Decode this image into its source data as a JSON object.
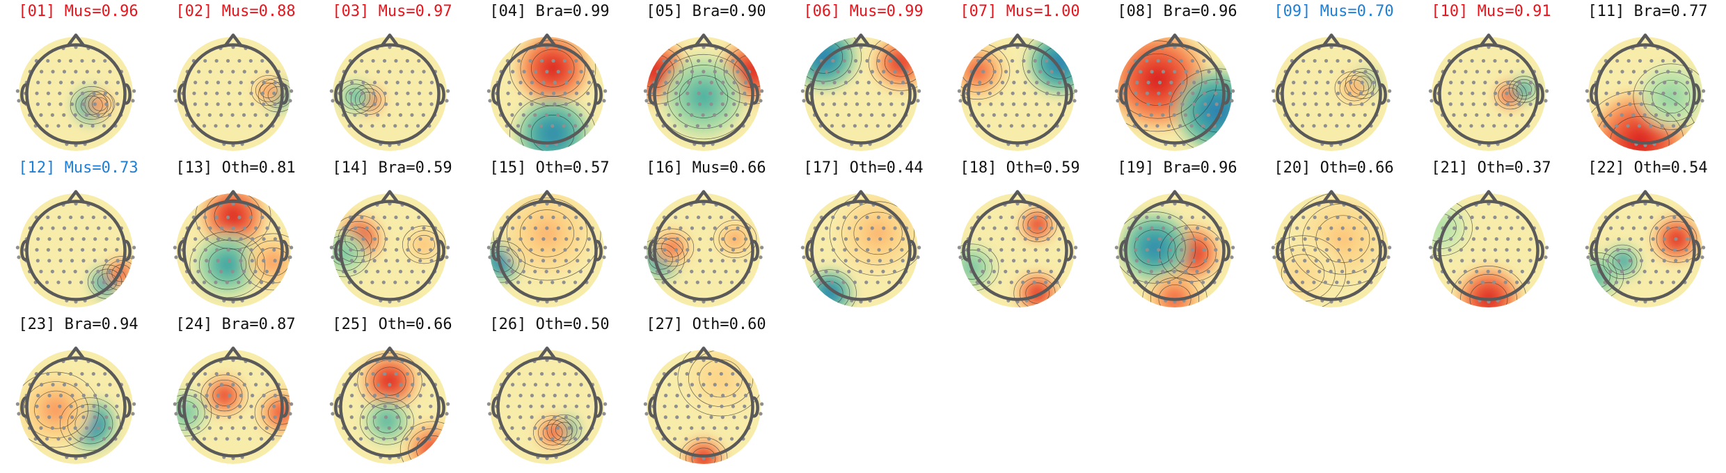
{
  "colors": {
    "muscle": "#e8141c",
    "muscle_low": "#1e7fd6",
    "default": "#111111"
  },
  "maps": [
    {
      "id": "[01]",
      "text": "Mus=0.96",
      "color": "#e8141c",
      "blobs": [
        {
          "dx": 0.28,
          "dy": 0.2,
          "r": 0.2,
          "v": -1.0
        },
        {
          "dx": 0.42,
          "dy": 0.18,
          "r": 0.14,
          "v": 0.7
        }
      ]
    },
    {
      "id": "[02]",
      "text": "Mus=0.88",
      "color": "#e8141c",
      "blobs": [
        {
          "dx": 0.78,
          "dy": 0.02,
          "r": 0.18,
          "v": -0.9
        },
        {
          "dx": 0.62,
          "dy": -0.06,
          "r": 0.16,
          "v": 0.6
        }
      ]
    },
    {
      "id": "[03]",
      "text": "Mus=0.97",
      "color": "#e8141c",
      "blobs": [
        {
          "dx": -0.38,
          "dy": 0.1,
          "r": 0.16,
          "v": 1.0
        },
        {
          "dx": -0.6,
          "dy": 0.05,
          "r": 0.18,
          "v": -0.6
        }
      ]
    },
    {
      "id": "[04]",
      "text": "Bra=0.99",
      "color": "#111111",
      "blobs": [
        {
          "dx": 0.1,
          "dy": -0.45,
          "r": 0.4,
          "v": 1.0
        },
        {
          "dx": 0.1,
          "dy": 0.7,
          "r": 0.4,
          "v": -0.9
        }
      ]
    },
    {
      "id": "[05]",
      "text": "Bra=0.90",
      "color": "#111111",
      "blobs": [
        {
          "dx": -0.85,
          "dy": -0.4,
          "r": 0.35,
          "v": 1.0
        },
        {
          "dx": 0.85,
          "dy": -0.4,
          "r": 0.35,
          "v": 1.0
        },
        {
          "dx": 0.0,
          "dy": 0.05,
          "r": 0.45,
          "v": -0.6
        }
      ]
    },
    {
      "id": "[06]",
      "text": "Mus=0.99",
      "color": "#e8141c",
      "blobs": [
        {
          "dx": -0.65,
          "dy": -0.65,
          "r": 0.35,
          "v": -1.0
        },
        {
          "dx": 0.7,
          "dy": -0.55,
          "r": 0.3,
          "v": 0.9
        }
      ]
    },
    {
      "id": "[07]",
      "text": "Mus=1.00",
      "color": "#e8141c",
      "blobs": [
        {
          "dx": 0.75,
          "dy": -0.55,
          "r": 0.35,
          "v": -1.0
        },
        {
          "dx": -0.7,
          "dy": -0.4,
          "r": 0.3,
          "v": 0.7
        }
      ]
    },
    {
      "id": "[08]",
      "text": "Bra=0.96",
      "color": "#111111",
      "blobs": [
        {
          "dx": -0.3,
          "dy": -0.25,
          "r": 0.55,
          "v": 1.0
        },
        {
          "dx": 0.75,
          "dy": 0.3,
          "r": 0.45,
          "v": -1.0
        }
      ]
    },
    {
      "id": "[09]",
      "text": "Mus=0.70",
      "color": "#1e7fd6",
      "blobs": [
        {
          "dx": 0.55,
          "dy": -0.18,
          "r": 0.16,
          "v": -1.0
        },
        {
          "dx": 0.4,
          "dy": -0.1,
          "r": 0.18,
          "v": 0.5
        }
      ]
    },
    {
      "id": "[10]",
      "text": "Mus=0.91",
      "color": "#e8141c",
      "blobs": [
        {
          "dx": 0.38,
          "dy": 0.02,
          "r": 0.15,
          "v": 1.0
        },
        {
          "dx": 0.62,
          "dy": -0.08,
          "r": 0.14,
          "v": -0.8
        }
      ]
    },
    {
      "id": "[11]",
      "text": "Bra=0.77",
      "color": "#111111",
      "blobs": [
        {
          "dx": -0.1,
          "dy": 0.85,
          "r": 0.55,
          "v": 1.0
        },
        {
          "dx": 0.45,
          "dy": 0.05,
          "r": 0.35,
          "v": -0.4
        }
      ]
    },
    {
      "id": "[12]",
      "text": "Mus=0.73",
      "color": "#1e7fd6",
      "blobs": [
        {
          "dx": 0.55,
          "dy": 0.55,
          "r": 0.18,
          "v": -1.0
        },
        {
          "dx": 0.8,
          "dy": 0.4,
          "r": 0.18,
          "v": 0.8
        }
      ]
    },
    {
      "id": "[13]",
      "text": "Oth=0.81",
      "color": "#111111",
      "blobs": [
        {
          "dx": 0.0,
          "dy": -0.6,
          "r": 0.35,
          "v": 1.0
        },
        {
          "dx": -0.1,
          "dy": 0.25,
          "r": 0.35,
          "v": -0.7
        },
        {
          "dx": 0.7,
          "dy": 0.2,
          "r": 0.3,
          "v": 0.5
        }
      ]
    },
    {
      "id": "[14]",
      "text": "Bra=0.59",
      "color": "#111111",
      "blobs": [
        {
          "dx": -0.55,
          "dy": -0.2,
          "r": 0.25,
          "v": 1.0
        },
        {
          "dx": -0.8,
          "dy": 0.05,
          "r": 0.25,
          "v": -0.5
        },
        {
          "dx": 0.6,
          "dy": -0.1,
          "r": 0.2,
          "v": 0.4
        }
      ]
    },
    {
      "id": "[15]",
      "text": "Oth=0.57",
      "color": "#111111",
      "blobs": [
        {
          "dx": -0.8,
          "dy": 0.2,
          "r": 0.22,
          "v": -1.0
        },
        {
          "dx": 0.0,
          "dy": -0.3,
          "r": 0.5,
          "v": 0.4
        }
      ]
    },
    {
      "id": "[16]",
      "text": "Mus=0.66",
      "color": "#111111",
      "blobs": [
        {
          "dx": -0.75,
          "dy": 0.15,
          "r": 0.22,
          "v": -0.9
        },
        {
          "dx": -0.55,
          "dy": -0.05,
          "r": 0.2,
          "v": 0.7
        },
        {
          "dx": 0.55,
          "dy": -0.2,
          "r": 0.2,
          "v": 0.5
        }
      ]
    },
    {
      "id": "[17]",
      "text": "Oth=0.44",
      "color": "#111111",
      "blobs": [
        {
          "dx": -0.55,
          "dy": 0.75,
          "r": 0.25,
          "v": -1.0
        },
        {
          "dx": 0.3,
          "dy": -0.3,
          "r": 0.45,
          "v": 0.4
        }
      ]
    },
    {
      "id": "[18]",
      "text": "Oth=0.59",
      "color": "#111111",
      "blobs": [
        {
          "dx": 0.35,
          "dy": -0.45,
          "r": 0.18,
          "v": 1.0
        },
        {
          "dx": 0.35,
          "dy": 0.75,
          "r": 0.22,
          "v": 1.0
        },
        {
          "dx": -0.8,
          "dy": 0.3,
          "r": 0.25,
          "v": -0.5
        }
      ]
    },
    {
      "id": "[19]",
      "text": "Bra=0.96",
      "color": "#111111",
      "blobs": [
        {
          "dx": 0.3,
          "dy": 0.05,
          "r": 0.3,
          "v": 1.0
        },
        {
          "dx": -0.35,
          "dy": -0.05,
          "r": 0.38,
          "v": -0.9
        },
        {
          "dx": 0.0,
          "dy": 0.85,
          "r": 0.3,
          "v": 0.7
        }
      ]
    },
    {
      "id": "[20]",
      "text": "Oth=0.66",
      "color": "#111111",
      "blobs": [
        {
          "dx": 0.2,
          "dy": -0.2,
          "r": 0.5,
          "v": 0.35
        },
        {
          "dx": -0.5,
          "dy": 0.4,
          "r": 0.4,
          "v": 0.25
        }
      ]
    },
    {
      "id": "[21]",
      "text": "Oth=0.37",
      "color": "#111111",
      "blobs": [
        {
          "dx": 0.0,
          "dy": 0.85,
          "r": 0.35,
          "v": 1.0
        },
        {
          "dx": -0.85,
          "dy": -0.4,
          "r": 0.3,
          "v": -0.3
        }
      ]
    },
    {
      "id": "[22]",
      "text": "Oth=0.54",
      "color": "#111111",
      "blobs": [
        {
          "dx": 0.55,
          "dy": -0.2,
          "r": 0.25,
          "v": 1.0
        },
        {
          "dx": -0.4,
          "dy": 0.2,
          "r": 0.18,
          "v": -0.8
        },
        {
          "dx": -0.85,
          "dy": 0.45,
          "r": 0.25,
          "v": -0.6
        }
      ]
    },
    {
      "id": "[23]",
      "text": "Bra=0.94",
      "color": "#111111",
      "blobs": [
        {
          "dx": 0.25,
          "dy": 0.3,
          "r": 0.28,
          "v": -1.0
        },
        {
          "dx": -0.35,
          "dy": 0.05,
          "r": 0.4,
          "v": 0.5
        }
      ]
    },
    {
      "id": "[24]",
      "text": "Bra=0.87",
      "color": "#111111",
      "blobs": [
        {
          "dx": -0.15,
          "dy": -0.2,
          "r": 0.22,
          "v": 0.9
        },
        {
          "dx": 0.85,
          "dy": 0.1,
          "r": 0.25,
          "v": 0.8
        },
        {
          "dx": -0.85,
          "dy": 0.1,
          "r": 0.25,
          "v": -0.5
        }
      ]
    },
    {
      "id": "[25]",
      "text": "Oth=0.66",
      "color": "#111111",
      "blobs": [
        {
          "dx": 0.0,
          "dy": -0.45,
          "r": 0.3,
          "v": 1.0
        },
        {
          "dx": -0.05,
          "dy": 0.25,
          "r": 0.25,
          "v": -0.6
        },
        {
          "dx": 0.75,
          "dy": 0.75,
          "r": 0.3,
          "v": 0.8
        }
      ]
    },
    {
      "id": "[26]",
      "text": "Oth=0.50",
      "color": "#111111",
      "blobs": [
        {
          "dx": 0.3,
          "dy": 0.4,
          "r": 0.16,
          "v": -1.0
        },
        {
          "dx": 0.1,
          "dy": 0.45,
          "r": 0.18,
          "v": 0.8
        }
      ]
    },
    {
      "id": "[27]",
      "text": "Oth=0.60",
      "color": "#111111",
      "blobs": [
        {
          "dx": 0.0,
          "dy": 0.9,
          "r": 0.22,
          "v": 1.0
        },
        {
          "dx": 0.3,
          "dy": -0.5,
          "r": 0.4,
          "v": 0.3
        }
      ]
    }
  ]
}
